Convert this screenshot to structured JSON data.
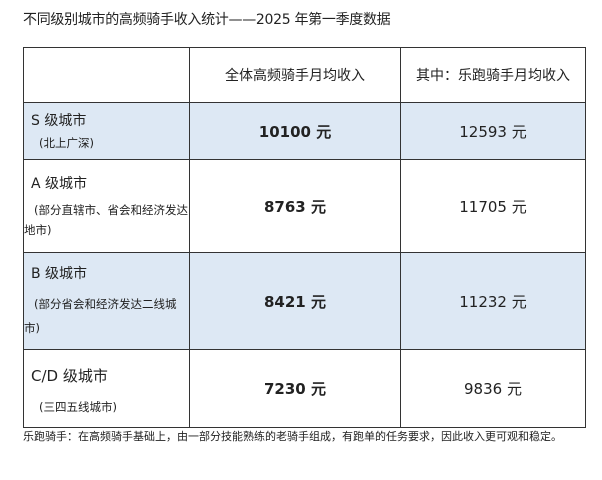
{
  "title": "不同级别城市的高频骑手收入统计——2025 年第一季度数据",
  "headers": [
    "",
    "全体高频骑手月均收入",
    "其中：乐跑骑手月均收入"
  ],
  "rows": [
    {
      "city": "S 级城市",
      "desc": "(北上广深)",
      "all": "10100 元",
      "lepao": "12593 元",
      "shaded": true
    },
    {
      "city": "A 级城市",
      "desc": "(部分直辖市、省会和经济发达地市)",
      "all": "8763 元",
      "lepao": "11705 元",
      "shaded": false
    },
    {
      "city": "B 级城市",
      "desc": "(部分省会和经济发达二线城市)",
      "all": "8421 元",
      "lepao": "11232 元",
      "shaded": true
    },
    {
      "city": "C/D 级城市",
      "desc": "(三四五线城市)",
      "all": "7230 元",
      "lepao": "9836 元",
      "shaded": false
    }
  ],
  "footnote": "乐跑骑手：在高频骑手基础上，由一部分技能熟练的老骑手组成，有跑单的任务要求，因此收入更可观和稳定。",
  "colors": {
    "shade": "#dde8f4",
    "border": "#333333"
  }
}
